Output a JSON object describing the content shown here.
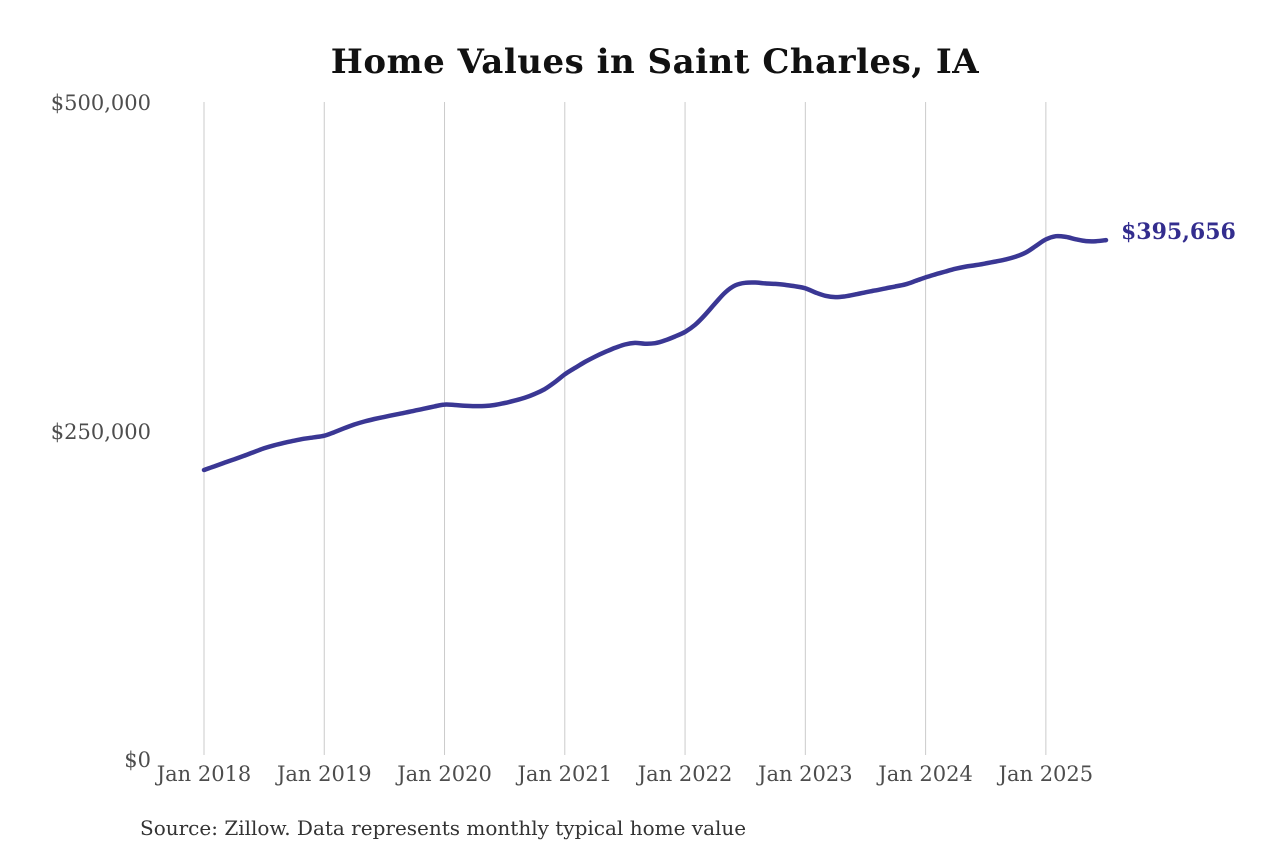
{
  "chart_data": {
    "type": "line",
    "title": "Home Values in Saint Charles, IA",
    "xlabel": "",
    "ylabel": "",
    "ylim": [
      0,
      500000
    ],
    "grid": "vertical-only",
    "legend": "none",
    "line_color": "#3a3794",
    "label_color": "#332d8e",
    "tick_color": "#4d4d4d",
    "grid_color": "#cbcbcb",
    "end_label": "$395,656",
    "x_ticks": [
      {
        "label": "Jan 2018",
        "month_index": 0
      },
      {
        "label": "Jan 2019",
        "month_index": 12
      },
      {
        "label": "Jan 2020",
        "month_index": 24
      },
      {
        "label": "Jan 2021",
        "month_index": 36
      },
      {
        "label": "Jan 2022",
        "month_index": 48
      },
      {
        "label": "Jan 2023",
        "month_index": 60
      },
      {
        "label": "Jan 2024",
        "month_index": 72
      },
      {
        "label": "Jan 2025",
        "month_index": 84
      }
    ],
    "y_ticks": [
      {
        "value": 0,
        "label": "$0"
      },
      {
        "value": 250000,
        "label": "$250,000"
      },
      {
        "value": 500000,
        "label": "$500,000"
      }
    ],
    "x": [
      "2018-01",
      "2018-02",
      "2018-03",
      "2018-04",
      "2018-05",
      "2018-06",
      "2018-07",
      "2018-08",
      "2018-09",
      "2018-10",
      "2018-11",
      "2018-12",
      "2019-01",
      "2019-02",
      "2019-03",
      "2019-04",
      "2019-05",
      "2019-06",
      "2019-07",
      "2019-08",
      "2019-09",
      "2019-10",
      "2019-11",
      "2019-12",
      "2020-01",
      "2020-02",
      "2020-03",
      "2020-04",
      "2020-05",
      "2020-06",
      "2020-07",
      "2020-08",
      "2020-09",
      "2020-10",
      "2020-11",
      "2020-12",
      "2021-01",
      "2021-02",
      "2021-03",
      "2021-04",
      "2021-05",
      "2021-06",
      "2021-07",
      "2021-08",
      "2021-09",
      "2021-10",
      "2021-11",
      "2021-12",
      "2022-01",
      "2022-02",
      "2022-03",
      "2022-04",
      "2022-05",
      "2022-06",
      "2022-07",
      "2022-08",
      "2022-09",
      "2022-10",
      "2022-11",
      "2022-12",
      "2023-01",
      "2023-02",
      "2023-03",
      "2023-04",
      "2023-05",
      "2023-06",
      "2023-07",
      "2023-08",
      "2023-09",
      "2023-10",
      "2023-11",
      "2023-12",
      "2024-01",
      "2024-02",
      "2024-03",
      "2024-04",
      "2024-05",
      "2024-06",
      "2024-07",
      "2024-08",
      "2024-09",
      "2024-10",
      "2024-11",
      "2024-12",
      "2025-01",
      "2025-02",
      "2025-03",
      "2025-04",
      "2025-05",
      "2025-06",
      "2025-07"
    ],
    "values": [
      220700,
      223400,
      226100,
      228800,
      231500,
      234400,
      237200,
      239500,
      241400,
      243000,
      244500,
      245600,
      246800,
      249500,
      252500,
      255300,
      257600,
      259500,
      261100,
      262700,
      264200,
      265800,
      267400,
      269100,
      270500,
      270200,
      269600,
      269300,
      269400,
      270200,
      271700,
      273500,
      275700,
      278600,
      282300,
      287500,
      293500,
      298300,
      302900,
      306900,
      310400,
      313600,
      316200,
      317400,
      316800,
      317200,
      319300,
      322300,
      325800,
      331200,
      338800,
      347500,
      355800,
      361200,
      363200,
      363400,
      362700,
      362300,
      361600,
      360500,
      359000,
      355800,
      353300,
      352300,
      352900,
      354300,
      355900,
      357400,
      358900,
      360400,
      362000,
      364600,
      367300,
      369600,
      371800,
      373900,
      375500,
      376600,
      377900,
      379400,
      381000,
      383100,
      386200,
      391200,
      396200,
      398600,
      398100,
      396300,
      394900,
      394800,
      395656
    ]
  },
  "footer": {
    "source": "Source: Zillow. Data represents monthly typical home value"
  }
}
